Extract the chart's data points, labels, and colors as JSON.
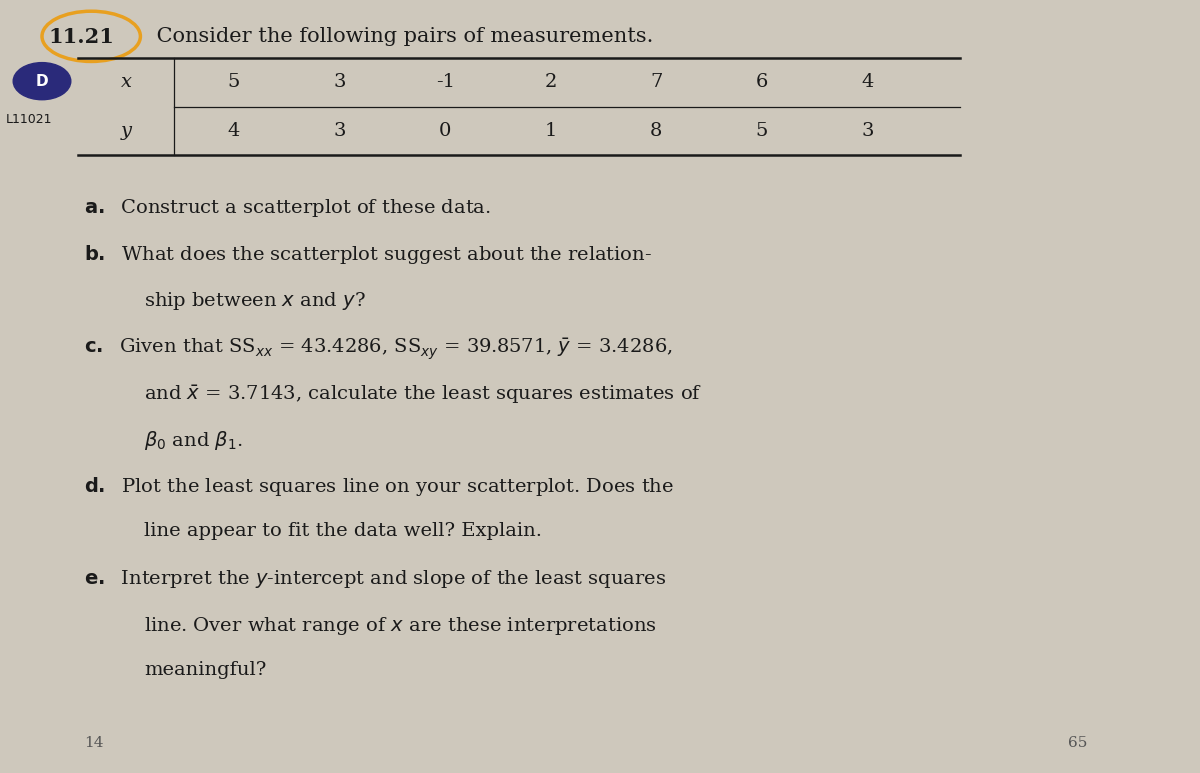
{
  "x_values": [
    5,
    3,
    -1,
    2,
    7,
    6,
    4
  ],
  "y_values": [
    4,
    3,
    0,
    1,
    8,
    5,
    3
  ],
  "problem_number": "11.21",
  "problem_title": " Consider the following pairs of measurements.",
  "label_tag": "L11021",
  "label_d": "D",
  "col_header_x": "x",
  "col_header_y": "y",
  "background_color": "#cec8bc",
  "text_color": "#1a1a1a",
  "table_line_color": "#1a1a1a",
  "circle_color": "#e8a020",
  "circle_d_color": "#2a2a7a",
  "font_size_title": 15,
  "font_size_body": 14,
  "font_size_table": 14
}
